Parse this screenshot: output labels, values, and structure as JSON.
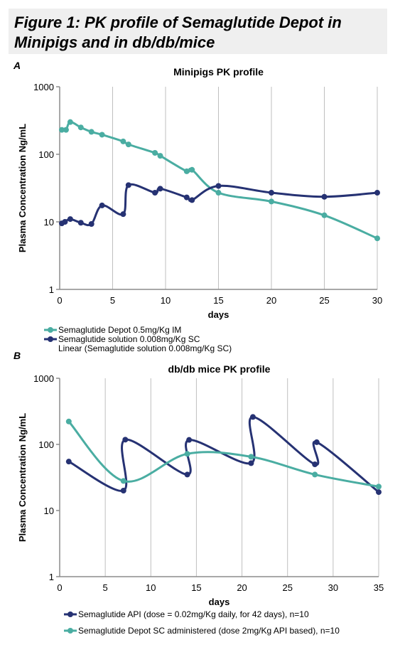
{
  "figure": {
    "title_line1": "Figure 1: PK profile of Semaglutide Depot in",
    "title_line2": "Minipigs and in db/db/mice"
  },
  "panels": [
    {
      "letter": "A"
    },
    {
      "letter": "B"
    }
  ],
  "colors": {
    "depot": "#4aada2",
    "solution": "#263273",
    "grid": "#bfbfbf",
    "axis": "#8c8c8c"
  },
  "chart_data": [
    {
      "type": "line",
      "title": "Minipigs PK profile",
      "xlabel": "days",
      "ylabel": "Plasma Concentration Ng/mL",
      "yscale": "log",
      "ylim": [
        1,
        1000
      ],
      "xlim": [
        0,
        30
      ],
      "xticks": [
        "0",
        "5",
        "10",
        "15",
        "20",
        "25",
        "30"
      ],
      "yticks": [
        "1",
        "10",
        "100",
        "1000"
      ],
      "grid": "vertical",
      "legend_position": "bottom-left",
      "legend": [
        "Semaglutide Depot 0.5mg/Kg IM",
        "Semaglutide solution 0.008mg/Kg SC",
        "Linear (Semaglutide solution 0.008mg/Kg SC)"
      ],
      "series": [
        {
          "name": "Semaglutide Depot 0.5mg/Kg IM",
          "color": "#4aada2",
          "x": [
            0.2,
            0.6,
            1,
            2,
            3,
            4,
            6,
            6.5,
            9,
            9.5,
            12,
            12.5,
            15,
            20,
            25,
            30
          ],
          "y": [
            230,
            230,
            300,
            250,
            215,
            195,
            155,
            140,
            105,
            95,
            56,
            59,
            27,
            20,
            12.5,
            5.7
          ]
        },
        {
          "name": "Semaglutide solution 0.008mg/Kg SC",
          "color": "#263273",
          "x": [
            0.2,
            0.5,
            1,
            2,
            3,
            4,
            6,
            6.5,
            9,
            9.5,
            12,
            12.5,
            15,
            20,
            25,
            30
          ],
          "y": [
            9.5,
            10,
            11,
            9.7,
            9.3,
            17.5,
            13,
            35,
            27,
            31,
            23,
            21,
            34,
            27,
            23.5,
            27
          ]
        }
      ]
    },
    {
      "type": "line",
      "title": "db/db mice PK profile",
      "xlabel": "days",
      "ylabel": "Plasma Concentration Ng/mL",
      "yscale": "log",
      "ylim": [
        1,
        1000
      ],
      "xlim": [
        0,
        35
      ],
      "xticks": [
        "0",
        "5",
        "10",
        "15",
        "20",
        "25",
        "30",
        "35"
      ],
      "yticks": [
        "1",
        "10",
        "100",
        "1000"
      ],
      "grid": "vertical",
      "legend_position": "bottom",
      "legend": [
        "Semaglutide API (dose = 0.02mg/Kg daily, for 42 days), n=10",
        "Semaglutide Depot SC  administered (dose 2mg/Kg API based), n=10"
      ],
      "series": [
        {
          "name": "Semaglutide API (dose = 0.02mg/Kg daily, for 42 days), n=10",
          "color": "#263273",
          "x": [
            1,
            7,
            7.2,
            14,
            14.2,
            21,
            21.2,
            28,
            28.2,
            35
          ],
          "y": [
            55,
            20,
            118,
            35,
            117,
            52,
            260,
            50,
            108,
            19
          ]
        },
        {
          "name": "Semaglutide Depot SC  administered (dose 2mg/Kg API based), n=10",
          "color": "#4aada2",
          "x": [
            1,
            7,
            14,
            21,
            28,
            35
          ],
          "y": [
            222,
            28,
            72,
            65,
            35,
            23
          ]
        }
      ]
    }
  ]
}
